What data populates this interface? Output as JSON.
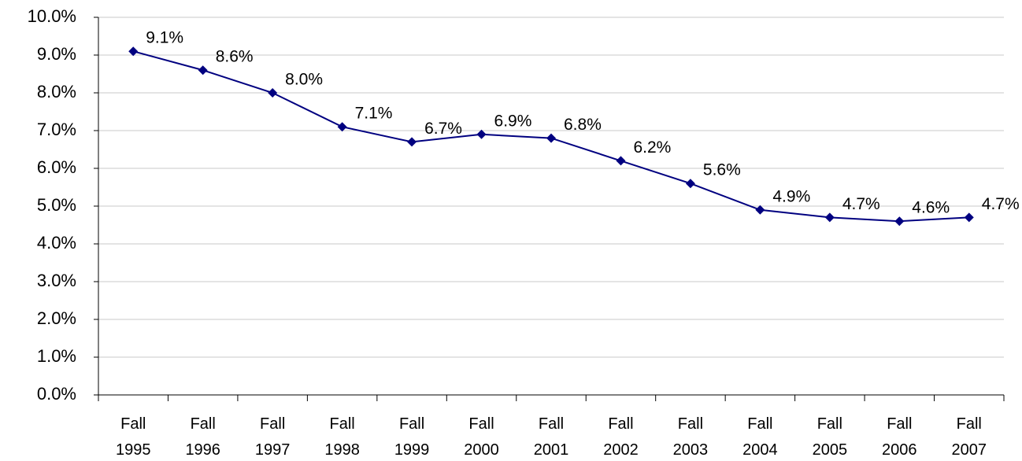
{
  "chart_data": {
    "type": "line",
    "categories": [
      "Fall 1995",
      "Fall 1996",
      "Fall 1997",
      "Fall 1998",
      "Fall 1999",
      "Fall 2000",
      "Fall 2001",
      "Fall 2002",
      "Fall 2003",
      "Fall 2004",
      "Fall 2005",
      "Fall 2006",
      "Fall 2007"
    ],
    "values": [
      9.1,
      8.6,
      8.0,
      7.1,
      6.7,
      6.9,
      6.8,
      6.2,
      5.6,
      4.9,
      4.7,
      4.6,
      4.7
    ],
    "value_labels": [
      "9.1%",
      "8.6%",
      "8.0%",
      "7.1%",
      "6.7%",
      "6.9%",
      "6.8%",
      "6.2%",
      "5.6%",
      "4.9%",
      "4.7%",
      "4.6%",
      "4.7%"
    ],
    "color": "#000080",
    "ylim": [
      0,
      10
    ],
    "yticks": [
      {
        "value": 0,
        "label": "0.0%"
      },
      {
        "value": 1,
        "label": "1.0%"
      },
      {
        "value": 2,
        "label": "2.0%"
      },
      {
        "value": 3,
        "label": "3.0%"
      },
      {
        "value": 4,
        "label": "4.0%"
      },
      {
        "value": 5,
        "label": "5.0%"
      },
      {
        "value": 6,
        "label": "6.0%"
      },
      {
        "value": 7,
        "label": "7.0%"
      },
      {
        "value": 8,
        "label": "8.0%"
      },
      {
        "value": 9,
        "label": "9.0%"
      },
      {
        "value": 10,
        "label": "10.0%"
      }
    ],
    "grid": true
  }
}
